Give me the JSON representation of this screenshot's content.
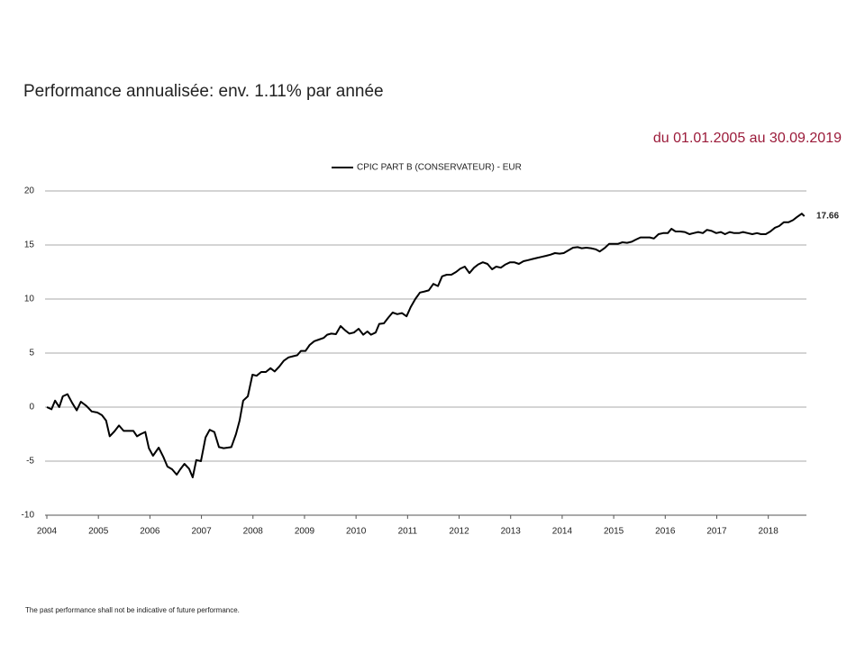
{
  "chart_data": {
    "type": "line",
    "title": "Performance annualisée: env. 1.11% par année",
    "subtitle": "du 01.01.2005 au 30.09.2019",
    "footnote": "The past performance shall not be indicative of future performance.",
    "x": [
      2004.0,
      2004.09,
      2004.16,
      2004.24,
      2004.31,
      2004.4,
      2004.49,
      2004.58,
      2004.66,
      2004.77,
      2004.87,
      2004.98,
      2005.07,
      2005.15,
      2005.22,
      2005.31,
      2005.4,
      2005.49,
      2005.57,
      2005.68,
      2005.75,
      2005.82,
      2005.91,
      2005.98,
      2006.06,
      2006.17,
      2006.26,
      2006.34,
      2006.43,
      2006.52,
      2006.59,
      2006.67,
      2006.76,
      2006.83,
      2006.9,
      2006.99,
      2007.08,
      2007.16,
      2007.25,
      2007.34,
      2007.43,
      2007.51,
      2007.58,
      2007.67,
      2007.74,
      2007.81,
      2007.9,
      2007.99,
      2008.07,
      2008.16,
      2008.25,
      2008.34,
      2008.42,
      2008.51,
      2008.6,
      2008.69,
      2008.77,
      2008.86,
      2008.93,
      2009.02,
      2009.1,
      2009.19,
      2009.28,
      2009.37,
      2009.44,
      2009.52,
      2009.61,
      2009.7,
      2009.79,
      2009.87,
      2009.96,
      2010.05,
      2010.14,
      2010.22,
      2010.29,
      2010.38,
      2010.45,
      2010.54,
      2010.63,
      2010.71,
      2010.8,
      2010.89,
      2010.98,
      2011.06,
      2011.15,
      2011.24,
      2011.33,
      2011.41,
      2011.5,
      2011.59,
      2011.67,
      2011.76,
      2011.85,
      2011.94,
      2012.02,
      2012.11,
      2012.2,
      2012.29,
      2012.37,
      2012.46,
      2012.55,
      2012.64,
      2012.72,
      2012.81,
      2012.9,
      2012.99,
      2013.07,
      2013.16,
      2013.25,
      2013.34,
      2013.42,
      2013.51,
      2013.6,
      2013.69,
      2013.77,
      2013.86,
      2013.95,
      2014.03,
      2014.12,
      2014.21,
      2014.3,
      2014.38,
      2014.47,
      2014.56,
      2014.65,
      2014.73,
      2014.82,
      2014.91,
      2015.0,
      2015.08,
      2015.17,
      2015.26,
      2015.35,
      2015.43,
      2015.52,
      2015.61,
      2015.7,
      2015.78,
      2015.87,
      2015.96,
      2016.05,
      2016.12,
      2016.2,
      2016.29,
      2016.38,
      2016.47,
      2016.55,
      2016.64,
      2016.73,
      2016.81,
      2016.9,
      2016.99,
      2017.08,
      2017.16,
      2017.25,
      2017.34,
      2017.43,
      2017.51,
      2017.6,
      2017.69,
      2017.78,
      2017.86,
      2017.95,
      2018.04,
      2018.13,
      2018.21,
      2018.3,
      2018.39,
      2018.48,
      2018.56,
      2018.65,
      2018.7
    ],
    "series": [
      {
        "name": "CPIC PART B (CONSERVATEUR) - EUR",
        "color": "#000000",
        "values": [
          0,
          -0.2,
          0.6,
          0,
          1.0,
          1.2,
          0.4,
          -0.3,
          0.5,
          0.1,
          -0.4,
          -0.5,
          -0.75,
          -1.25,
          -2.7,
          -2.25,
          -1.7,
          -2.2,
          -2.2,
          -2.2,
          -2.7,
          -2.5,
          -2.3,
          -3.8,
          -4.5,
          -3.75,
          -4.6,
          -5.5,
          -5.75,
          -6.25,
          -5.75,
          -5.25,
          -5.7,
          -6.5,
          -4.9,
          -5,
          -2.8,
          -2.1,
          -2.3,
          -3.7,
          -3.8,
          -3.75,
          -3.7,
          -2.5,
          -1.25,
          0.6,
          1.0,
          3.0,
          2.9,
          3.25,
          3.25,
          3.6,
          3.3,
          3.75,
          4.3,
          4.6,
          4.7,
          4.8,
          5.2,
          5.2,
          5.75,
          6.1,
          6.25,
          6.4,
          6.7,
          6.8,
          6.75,
          7.5,
          7.1,
          6.8,
          6.9,
          7.25,
          6.7,
          7,
          6.7,
          6.9,
          7.7,
          7.75,
          8.3,
          8.75,
          8.6,
          8.7,
          8.4,
          9.25,
          10,
          10.6,
          10.7,
          10.8,
          11.4,
          11.2,
          12.1,
          12.25,
          12.25,
          12.5,
          12.8,
          13,
          12.4,
          12.9,
          13.2,
          13.4,
          13.25,
          12.75,
          13,
          12.9,
          13.2,
          13.4,
          13.4,
          13.25,
          13.5,
          13.6,
          13.7,
          13.8,
          13.9,
          14,
          14.1,
          14.25,
          14.2,
          14.25,
          14.5,
          14.75,
          14.8,
          14.7,
          14.75,
          14.7,
          14.6,
          14.4,
          14.7,
          15.1,
          15.1,
          15.1,
          15.25,
          15.2,
          15.3,
          15.5,
          15.7,
          15.7,
          15.7,
          15.6,
          16,
          16.1,
          16.1,
          16.5,
          16.25,
          16.25,
          16.2,
          16,
          16.1,
          16.2,
          16.1,
          16.4,
          16.3,
          16.1,
          16.2,
          16,
          16.2,
          16.1,
          16.1,
          16.2,
          16.1,
          16,
          16.1,
          16,
          16,
          16.25,
          16.6,
          16.75,
          17.1,
          17.1,
          17.3,
          17.6,
          17.9,
          17.66
        ]
      }
    ],
    "xlim": [
      2004,
      2018.74
    ],
    "xticks": [
      2004,
      2005,
      2006,
      2007,
      2008,
      2009,
      2010,
      2011,
      2012,
      2013,
      2014,
      2015,
      2016,
      2017,
      2018
    ],
    "ylim": [
      -10,
      20
    ],
    "yticks": [
      -10,
      -5,
      0,
      5,
      10,
      15,
      20
    ],
    "grid": true,
    "legend": "top"
  }
}
